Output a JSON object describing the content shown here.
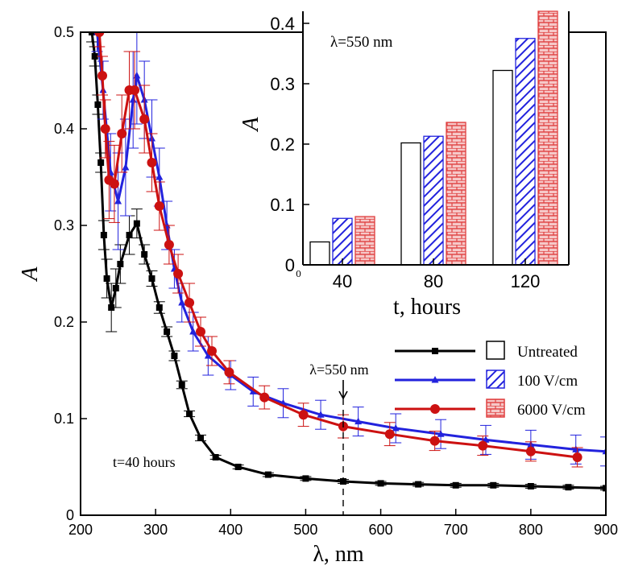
{
  "chart_data": [
    {
      "type": "line",
      "title": "",
      "xlabel": "λ, nm",
      "ylabel": "A",
      "xlim": [
        200,
        900
      ],
      "ylim": [
        0,
        0.5
      ],
      "xticks": [
        "200",
        "300",
        "400",
        "500",
        "600",
        "700",
        "800",
        "900"
      ],
      "yticks": [
        "0",
        "0.1",
        "0.2",
        "0.3",
        "0.4",
        "0.5"
      ],
      "grid": false,
      "legend": "right",
      "series": [
        {
          "name": "Untreated",
          "color": "#000000",
          "marker": "square",
          "x": [
            215,
            219,
            223,
            227,
            231,
            235,
            241,
            247,
            253,
            265,
            275,
            285,
            295,
            305,
            315,
            325,
            335,
            345,
            360,
            380,
            410,
            450,
            500,
            550,
            600,
            650,
            700,
            750,
            800,
            850,
            900
          ],
          "y": [
            0.5,
            0.475,
            0.425,
            0.365,
            0.29,
            0.245,
            0.215,
            0.235,
            0.26,
            0.29,
            0.302,
            0.27,
            0.245,
            0.215,
            0.19,
            0.165,
            0.135,
            0.105,
            0.08,
            0.06,
            0.05,
            0.042,
            0.038,
            0.035,
            0.033,
            0.032,
            0.031,
            0.031,
            0.03,
            0.029,
            0.028
          ],
          "error": [
            0.01,
            0.01,
            0.01,
            0.01,
            0.015,
            0.02,
            0.025,
            0.02,
            0.02,
            0.02,
            0.015,
            0.01,
            0.008,
            0.006,
            0.005,
            0.005,
            0.004,
            0.003,
            0.003,
            0.002,
            0.002,
            0.002,
            0.002,
            0.002,
            0.002,
            0.002,
            0.002,
            0.002,
            0.002,
            0.002,
            0.002
          ]
        },
        {
          "name": "100 V/cm",
          "color": "#2222dd",
          "marker": "triangle",
          "x": [
            222,
            230,
            240,
            250,
            260,
            270,
            275,
            285,
            295,
            305,
            315,
            325,
            335,
            350,
            370,
            400,
            430,
            470,
            520,
            570,
            620,
            680,
            740,
            800,
            860,
            900
          ],
          "y": [
            0.5,
            0.44,
            0.355,
            0.325,
            0.36,
            0.43,
            0.455,
            0.43,
            0.39,
            0.35,
            0.3,
            0.255,
            0.22,
            0.19,
            0.165,
            0.145,
            0.128,
            0.116,
            0.104,
            0.097,
            0.09,
            0.084,
            0.078,
            0.073,
            0.068,
            0.066
          ],
          "error": [
            0.02,
            0.03,
            0.04,
            0.05,
            0.05,
            0.05,
            0.05,
            0.04,
            0.04,
            0.03,
            0.025,
            0.02,
            0.02,
            0.02,
            0.02,
            0.015,
            0.015,
            0.015,
            0.015,
            0.015,
            0.015,
            0.015,
            0.015,
            0.015,
            0.015,
            0.015
          ]
        },
        {
          "name": "6000 V/cm",
          "color": "#cc1111",
          "marker": "circle",
          "x": [
            225,
            229,
            233,
            238,
            245,
            255,
            265,
            272,
            285,
            295,
            305,
            318,
            330,
            345,
            360,
            375,
            398,
            445,
            497,
            550,
            612,
            672,
            736,
            800,
            862
          ],
          "y": [
            0.5,
            0.455,
            0.4,
            0.347,
            0.343,
            0.395,
            0.44,
            0.44,
            0.41,
            0.365,
            0.32,
            0.28,
            0.25,
            0.22,
            0.19,
            0.17,
            0.148,
            0.122,
            0.104,
            0.092,
            0.084,
            0.077,
            0.072,
            0.066,
            0.06
          ],
          "error": [
            0.015,
            0.02,
            0.03,
            0.04,
            0.04,
            0.04,
            0.04,
            0.04,
            0.035,
            0.03,
            0.025,
            0.02,
            0.02,
            0.02,
            0.015,
            0.015,
            0.012,
            0.012,
            0.012,
            0.012,
            0.012,
            0.01,
            0.01,
            0.01,
            0.01
          ]
        }
      ],
      "annotations": {
        "time_label": "t=40 hours",
        "wavelength_label": "λ=550 nm",
        "marker_x": 550
      }
    },
    {
      "type": "bar",
      "title": "",
      "xlabel": "t, hours",
      "ylabel": "A",
      "categories": [
        "40",
        "80",
        "120"
      ],
      "ylim": [
        0,
        0.42
      ],
      "yticks": [
        "0",
        "0.1",
        "0.2",
        "0.3",
        "0.4"
      ],
      "zero_label": "0",
      "annotation": "λ=550 nm",
      "series": [
        {
          "name": "Untreated",
          "pattern": "hollow",
          "values": [
            0.038,
            0.202,
            0.322
          ]
        },
        {
          "name": "100 V/cm",
          "pattern": "diagonal-hatch",
          "color": "#2222dd",
          "values": [
            0.077,
            0.213,
            0.375
          ]
        },
        {
          "name": "6000 V/cm",
          "pattern": "brick",
          "color": "#e04040",
          "values": [
            0.08,
            0.236,
            0.42
          ]
        }
      ]
    }
  ]
}
